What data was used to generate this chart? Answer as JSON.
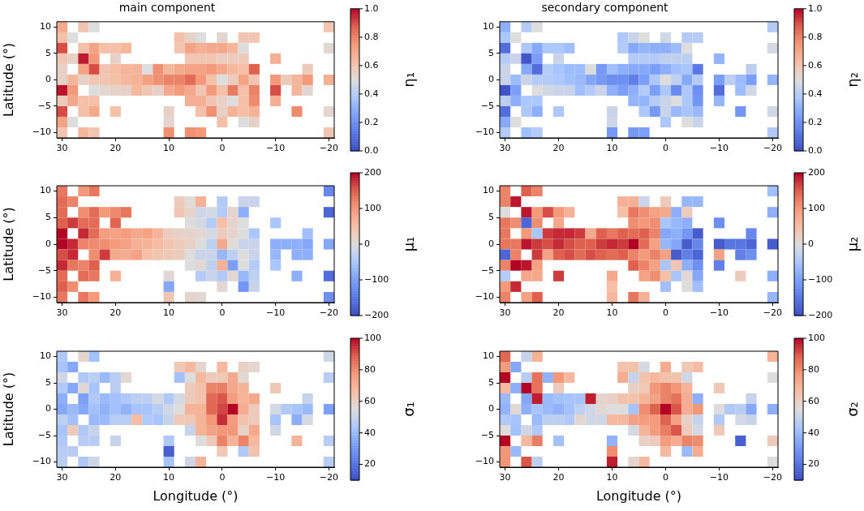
{
  "chart_data": [
    {
      "type": "heatmap",
      "title": "main component",
      "ylabel": "Latitude (°)",
      "clabel": "η₁",
      "clim": [
        0,
        1
      ],
      "cticks": [
        {
          "value": 0,
          "label": "0.0"
        },
        {
          "value": 0.2,
          "label": "0.2"
        },
        {
          "value": 0.4,
          "label": "0.4"
        },
        {
          "value": 0.6,
          "label": "0.6"
        },
        {
          "value": 0.8,
          "label": "0.8"
        },
        {
          "value": 1,
          "label": "1.0"
        }
      ],
      "xlim": [
        31,
        -21
      ],
      "xticks": [
        30,
        20,
        10,
        0,
        -10,
        -20
      ],
      "ylim": [
        -11,
        11
      ],
      "yticks": [
        -10,
        -5,
        0,
        5,
        10
      ],
      "cells": [
        [
          0.7,
          null,
          0.6,
          0.5,
          null,
          null,
          null,
          null,
          null,
          null,
          null,
          null,
          null,
          null,
          null,
          null,
          null,
          null,
          null,
          null,
          null,
          null,
          null,
          null,
          null,
          0.6
        ],
        [
          0.62,
          0.5,
          null,
          null,
          null,
          null,
          null,
          null,
          null,
          null,
          null,
          0.62,
          0.55,
          0.5,
          null,
          0.53,
          null,
          0.6,
          0.6,
          null,
          null,
          null,
          null,
          null,
          null,
          null
        ],
        [
          0.9,
          null,
          0.62,
          0.72,
          0.62,
          0.62,
          0.65,
          null,
          null,
          null,
          null,
          0.6,
          0.72,
          0.68,
          0.7,
          0.7,
          0.66,
          0.5,
          null,
          null,
          null,
          null,
          null,
          null,
          null,
          0.52
        ],
        [
          0.6,
          0.55,
          0.97,
          0.75,
          null,
          0.55,
          null,
          null,
          null,
          null,
          null,
          null,
          0.6,
          0.6,
          0.6,
          0.57,
          0.57,
          0.58,
          null,
          null,
          0.68,
          null,
          null,
          null,
          null,
          null
        ],
        [
          0.55,
          null,
          0.72,
          0.9,
          0.6,
          0.63,
          0.66,
          0.66,
          0.5,
          0.77,
          0.65,
          0.7,
          0.72,
          0.72,
          0.75,
          0.7,
          0.65,
          0.63,
          0.87,
          null,
          null,
          null,
          null,
          0.58,
          null,
          null
        ],
        [
          0.55,
          0.66,
          0.55,
          0.6,
          0.6,
          0.62,
          0.65,
          0.67,
          0.73,
          0.77,
          0.8,
          0.8,
          0.85,
          0.75,
          0.62,
          0.5,
          0.57,
          0.72,
          0.6,
          null,
          0.75,
          0.58,
          0.66,
          0.75,
          null,
          0.68
        ],
        [
          0.98,
          0.75,
          null,
          0.5,
          0.53,
          0.55,
          0.55,
          0.65,
          0.6,
          0.55,
          0.7,
          0.75,
          0.7,
          0.6,
          0.75,
          0.62,
          0.82,
          0.62,
          0.8,
          null,
          0.9,
          null,
          0.66,
          0.53,
          null,
          null
        ],
        [
          0.58,
          0.7,
          0.62,
          0.62,
          null,
          null,
          null,
          null,
          null,
          null,
          null,
          null,
          0.68,
          0.68,
          0.6,
          0.55,
          0.5,
          0.62,
          0.78,
          null,
          0.68,
          null,
          null,
          null,
          null,
          null
        ],
        [
          0.9,
          null,
          0.62,
          0.7,
          null,
          0.62,
          null,
          null,
          null,
          null,
          0.55,
          null,
          null,
          0.62,
          0.77,
          0.55,
          0.67,
          0.63,
          0.67,
          null,
          null,
          null,
          0.78,
          null,
          null,
          0.53
        ],
        [
          0.72,
          0.5,
          null,
          null,
          null,
          null,
          null,
          null,
          null,
          null,
          0.53,
          null,
          null,
          null,
          null,
          0.62,
          null,
          0.5,
          0.55,
          null,
          null,
          null,
          null,
          null,
          null,
          null
        ],
        [
          0.6,
          null,
          0.65,
          0.6,
          null,
          null,
          null,
          null,
          null,
          null,
          0.77,
          null,
          0.77,
          0.75,
          null,
          null,
          null,
          null,
          null,
          null,
          null,
          null,
          null,
          null,
          null,
          0.6
        ]
      ]
    },
    {
      "type": "heatmap",
      "title": "secondary component",
      "clabel": "η₂",
      "clim": [
        0,
        1
      ],
      "cticks": [
        {
          "value": 0,
          "label": "0.0"
        },
        {
          "value": 0.2,
          "label": "0.2"
        },
        {
          "value": 0.4,
          "label": "0.4"
        },
        {
          "value": 0.6,
          "label": "0.6"
        },
        {
          "value": 0.8,
          "label": "0.8"
        },
        {
          "value": 1,
          "label": "1.0"
        }
      ],
      "xlim": [
        31,
        -21
      ],
      "xticks": [
        30,
        20,
        10,
        0,
        -10,
        -20
      ],
      "ylim": [
        -11,
        11
      ],
      "yticks": [
        -10,
        -5,
        0,
        5,
        10
      ],
      "cells": [
        [
          0.3,
          null,
          0.4,
          0.5,
          null,
          null,
          null,
          null,
          null,
          null,
          null,
          null,
          null,
          null,
          null,
          null,
          null,
          null,
          null,
          null,
          null,
          null,
          null,
          null,
          null,
          0.4
        ],
        [
          0.38,
          0.5,
          null,
          null,
          null,
          null,
          null,
          null,
          null,
          null,
          null,
          0.38,
          0.45,
          0.5,
          null,
          0.47,
          null,
          0.4,
          0.4,
          null,
          null,
          null,
          null,
          null,
          null,
          null
        ],
        [
          0.1,
          null,
          0.38,
          0.28,
          0.38,
          0.38,
          0.35,
          null,
          null,
          null,
          null,
          0.4,
          0.28,
          0.32,
          0.3,
          0.3,
          0.34,
          0.5,
          null,
          null,
          null,
          null,
          null,
          null,
          null,
          0.48
        ],
        [
          0.4,
          0.45,
          0.03,
          0.25,
          null,
          0.45,
          null,
          null,
          null,
          null,
          null,
          null,
          0.4,
          0.4,
          0.4,
          0.43,
          0.43,
          0.42,
          null,
          null,
          0.32,
          null,
          null,
          null,
          null,
          null
        ],
        [
          0.45,
          null,
          0.28,
          0.1,
          0.4,
          0.37,
          0.34,
          0.34,
          0.5,
          0.23,
          0.35,
          0.3,
          0.28,
          0.28,
          0.25,
          0.3,
          0.35,
          0.37,
          0.13,
          null,
          null,
          null,
          null,
          0.42,
          null,
          null
        ],
        [
          0.45,
          0.34,
          0.45,
          0.4,
          0.4,
          0.38,
          0.35,
          0.33,
          0.27,
          0.23,
          0.2,
          0.2,
          0.15,
          0.25,
          0.38,
          0.5,
          0.43,
          0.28,
          0.4,
          null,
          0.25,
          0.42,
          0.34,
          0.25,
          null,
          0.32
        ],
        [
          0.02,
          0.25,
          null,
          0.5,
          0.47,
          0.45,
          0.45,
          0.35,
          0.4,
          0.45,
          0.3,
          0.25,
          0.3,
          0.4,
          0.25,
          0.38,
          0.18,
          0.38,
          0.2,
          null,
          0.1,
          null,
          0.34,
          0.47,
          null,
          null
        ],
        [
          0.42,
          0.3,
          0.38,
          0.38,
          null,
          null,
          null,
          null,
          null,
          null,
          null,
          null,
          0.32,
          0.32,
          0.4,
          0.45,
          0.5,
          0.38,
          0.22,
          null,
          0.32,
          null,
          null,
          null,
          null,
          null
        ],
        [
          0.1,
          null,
          0.38,
          0.3,
          null,
          0.38,
          null,
          null,
          null,
          null,
          0.45,
          null,
          null,
          0.38,
          0.23,
          0.45,
          0.33,
          0.37,
          0.33,
          null,
          null,
          null,
          0.22,
          null,
          null,
          0.47
        ],
        [
          0.28,
          0.5,
          null,
          null,
          null,
          null,
          null,
          null,
          null,
          null,
          0.47,
          null,
          null,
          null,
          null,
          0.38,
          null,
          0.5,
          0.45,
          null,
          null,
          null,
          null,
          null,
          null,
          null
        ],
        [
          0.4,
          null,
          0.35,
          0.4,
          null,
          null,
          null,
          null,
          null,
          null,
          0.23,
          null,
          0.23,
          0.25,
          null,
          null,
          null,
          null,
          null,
          null,
          null,
          null,
          null,
          null,
          null,
          0.4
        ]
      ]
    },
    {
      "type": "heatmap",
      "ylabel": "Latitude (°)",
      "clabel": "μ₁",
      "clim": [
        -200,
        200
      ],
      "cticks": [
        -200,
        -100,
        0,
        100,
        200
      ],
      "xlim": [
        31,
        -21
      ],
      "xticks": [
        30,
        20,
        10,
        0,
        -10,
        -20
      ],
      "ylim": [
        -11,
        11
      ],
      "yticks": [
        -10,
        -5,
        0,
        5,
        10
      ],
      "cells": [
        [
          130,
          null,
          100,
          130,
          null,
          null,
          null,
          null,
          null,
          null,
          null,
          null,
          null,
          null,
          null,
          null,
          null,
          null,
          null,
          null,
          null,
          null,
          null,
          null,
          null,
          -130
        ],
        [
          140,
          120,
          null,
          null,
          null,
          null,
          null,
          null,
          null,
          null,
          null,
          30,
          5,
          70,
          null,
          -40,
          null,
          -20,
          -20,
          null,
          null,
          null,
          null,
          null,
          null,
          null
        ],
        [
          140,
          null,
          110,
          140,
          100,
          115,
          130,
          null,
          null,
          null,
          null,
          40,
          15,
          -15,
          -10,
          -40,
          15,
          -80,
          null,
          null,
          null,
          null,
          null,
          null,
          null,
          -170
        ],
        [
          150,
          170,
          140,
          140,
          null,
          145,
          null,
          null,
          null,
          null,
          null,
          null,
          0,
          -10,
          -40,
          50,
          15,
          0,
          null,
          null,
          -50,
          null,
          null,
          null,
          null,
          null
        ],
        [
          200,
          null,
          180,
          140,
          95,
          90,
          95,
          80,
          90,
          65,
          30,
          20,
          15,
          10,
          -10,
          30,
          15,
          0,
          -50,
          null,
          null,
          null,
          null,
          -60,
          null,
          null
        ],
        [
          200,
          180,
          120,
          115,
          110,
          100,
          90,
          70,
          65,
          55,
          40,
          30,
          20,
          0,
          -30,
          80,
          5,
          -20,
          -20,
          null,
          -80,
          -80,
          -80,
          -90,
          null,
          -90
        ],
        [
          160,
          180,
          null,
          110,
          170,
          80,
          75,
          90,
          50,
          40,
          35,
          30,
          0,
          -20,
          -20,
          -70,
          -30,
          0,
          -20,
          null,
          -70,
          null,
          -80,
          -80,
          null,
          null
        ],
        [
          180,
          130,
          120,
          150,
          null,
          null,
          null,
          null,
          null,
          null,
          null,
          null,
          0,
          10,
          -30,
          70,
          -100,
          0,
          -40,
          null,
          -50,
          null,
          null,
          null,
          null,
          null
        ],
        [
          140,
          null,
          140,
          130,
          null,
          70,
          null,
          null,
          null,
          null,
          10,
          null,
          null,
          -40,
          -20,
          -45,
          10,
          -70,
          -30,
          null,
          null,
          null,
          -80,
          null,
          null,
          -160
        ],
        [
          150,
          110,
          null,
          null,
          null,
          null,
          null,
          null,
          null,
          null,
          -90,
          null,
          null,
          null,
          null,
          10,
          null,
          -110,
          -20,
          null,
          null,
          null,
          null,
          null,
          null,
          null
        ],
        [
          130,
          null,
          130,
          100,
          null,
          null,
          null,
          null,
          null,
          null,
          40,
          null,
          15,
          10,
          null,
          null,
          null,
          null,
          null,
          null,
          null,
          null,
          null,
          null,
          null,
          -120
        ]
      ]
    },
    {
      "type": "heatmap",
      "clabel": "μ₂",
      "clim": [
        -200,
        200
      ],
      "cticks": [
        -200,
        -100,
        0,
        100,
        200
      ],
      "xlim": [
        31,
        -21
      ],
      "xticks": [
        30,
        20,
        10,
        0,
        -10,
        -20
      ],
      "ylim": [
        -11,
        11
      ],
      "yticks": [
        -10,
        -5,
        0,
        5,
        10
      ],
      "cells": [
        [
          120,
          null,
          150,
          120,
          null,
          null,
          null,
          null,
          null,
          null,
          null,
          null,
          null,
          null,
          null,
          null,
          null,
          null,
          null,
          null,
          null,
          null,
          null,
          null,
          null,
          -60
        ],
        [
          120,
          190,
          null,
          null,
          null,
          null,
          null,
          null,
          null,
          null,
          null,
          70,
          70,
          -20,
          null,
          30,
          null,
          -70,
          -70,
          null,
          null,
          null,
          null,
          null,
          null,
          null
        ],
        [
          0,
          null,
          190,
          100,
          160,
          100,
          70,
          null,
          null,
          null,
          null,
          50,
          130,
          110,
          90,
          80,
          -80,
          30,
          null,
          null,
          null,
          null,
          null,
          null,
          null,
          -80
        ],
        [
          130,
          110,
          -170,
          110,
          null,
          80,
          null,
          null,
          null,
          null,
          null,
          null,
          110,
          100,
          110,
          -50,
          -70,
          -80,
          null,
          null,
          -120,
          null,
          null,
          null,
          null,
          null
        ],
        [
          130,
          null,
          100,
          -50,
          170,
          180,
          180,
          170,
          80,
          150,
          130,
          150,
          140,
          150,
          120,
          -90,
          -80,
          -110,
          -180,
          null,
          null,
          null,
          null,
          -130,
          null,
          null
        ],
        [
          130,
          130,
          190,
          170,
          160,
          180,
          160,
          150,
          150,
          170,
          180,
          170,
          200,
          140,
          90,
          -70,
          -90,
          -180,
          -130,
          null,
          -180,
          -150,
          -150,
          -170,
          null,
          -180
        ],
        [
          -170,
          120,
          null,
          170,
          90,
          150,
          160,
          140,
          160,
          150,
          140,
          150,
          120,
          100,
          120,
          90,
          -180,
          -140,
          -170,
          null,
          90,
          null,
          -140,
          -120,
          null,
          null
        ],
        [
          120,
          200,
          190,
          90,
          null,
          null,
          null,
          null,
          null,
          null,
          null,
          null,
          150,
          120,
          90,
          -50,
          40,
          -80,
          -120,
          null,
          -140,
          null,
          null,
          null,
          null,
          null
        ],
        [
          -40,
          null,
          80,
          80,
          null,
          170,
          null,
          null,
          null,
          null,
          80,
          null,
          null,
          90,
          110,
          50,
          -50,
          10,
          -90,
          null,
          null,
          null,
          30,
          null,
          null,
          -80
        ],
        [
          100,
          180,
          null,
          null,
          null,
          null,
          null,
          null,
          null,
          null,
          50,
          null,
          null,
          null,
          null,
          -60,
          null,
          0,
          -60,
          null,
          null,
          null,
          null,
          null,
          null,
          null
        ],
        [
          120,
          null,
          90,
          150,
          null,
          null,
          null,
          null,
          null,
          null,
          60,
          null,
          130,
          70,
          null,
          null,
          null,
          null,
          null,
          null,
          null,
          null,
          null,
          null,
          null,
          -70
        ]
      ]
    },
    {
      "type": "heatmap",
      "xlabel": "Longitude (°)",
      "ylabel": "Latitude (°)",
      "clabel": "σ₁",
      "clim": [
        10,
        100
      ],
      "cticks": [
        20,
        40,
        60,
        80,
        100
      ],
      "xlim": [
        31,
        -21
      ],
      "xticks": [
        30,
        20,
        10,
        0,
        -10,
        -20
      ],
      "ylim": [
        -11,
        11
      ],
      "yticks": [
        -10,
        -5,
        0,
        5,
        10
      ],
      "cells": [
        [
          45,
          null,
          58,
          42,
          null,
          null,
          null,
          null,
          null,
          null,
          null,
          null,
          null,
          null,
          null,
          null,
          null,
          null,
          null,
          null,
          null,
          null,
          null,
          null,
          null,
          52
        ],
        [
          43,
          35,
          null,
          null,
          null,
          null,
          null,
          null,
          null,
          null,
          null,
          63,
          68,
          58,
          null,
          68,
          null,
          60,
          58,
          null,
          null,
          null,
          null,
          null,
          null,
          null
        ],
        [
          52,
          null,
          45,
          48,
          40,
          47,
          57,
          null,
          null,
          null,
          null,
          42,
          55,
          68,
          62,
          63,
          73,
          57,
          null,
          null,
          null,
          null,
          null,
          null,
          null,
          47
        ],
        [
          45,
          35,
          57,
          43,
          null,
          47,
          null,
          null,
          null,
          null,
          null,
          null,
          62,
          65,
          82,
          83,
          73,
          70,
          null,
          null,
          63,
          null,
          null,
          null,
          null,
          null
        ],
        [
          37,
          null,
          33,
          45,
          40,
          42,
          45,
          48,
          48,
          53,
          45,
          53,
          62,
          65,
          87,
          90,
          77,
          70,
          73,
          null,
          null,
          null,
          null,
          50,
          null,
          null
        ],
        [
          35,
          40,
          35,
          42,
          38,
          42,
          38,
          43,
          43,
          47,
          52,
          55,
          70,
          70,
          87,
          92,
          100,
          72,
          62,
          null,
          53,
          45,
          43,
          40,
          null,
          33
        ],
        [
          48,
          42,
          null,
          40,
          40,
          47,
          47,
          67,
          45,
          43,
          50,
          63,
          63,
          70,
          78,
          95,
          77,
          65,
          62,
          null,
          43,
          null,
          37,
          53,
          null,
          null
        ],
        [
          43,
          62,
          45,
          50,
          null,
          null,
          null,
          null,
          null,
          null,
          null,
          null,
          50,
          70,
          75,
          78,
          78,
          60,
          73,
          null,
          52,
          null,
          null,
          null,
          null,
          null
        ],
        [
          45,
          null,
          47,
          47,
          null,
          50,
          null,
          null,
          null,
          null,
          45,
          null,
          null,
          55,
          63,
          82,
          70,
          82,
          68,
          null,
          null,
          null,
          70,
          null,
          null,
          47
        ],
        [
          47,
          47,
          null,
          null,
          null,
          null,
          null,
          null,
          null,
          null,
          15,
          null,
          null,
          null,
          null,
          63,
          null,
          45,
          65,
          null,
          null,
          null,
          null,
          null,
          null,
          null
        ],
        [
          48,
          null,
          45,
          52,
          null,
          null,
          null,
          null,
          null,
          null,
          43,
          null,
          52,
          70,
          null,
          null,
          null,
          null,
          null,
          null,
          null,
          null,
          null,
          null,
          null,
          47
        ]
      ]
    },
    {
      "type": "heatmap",
      "xlabel": "Longitude (°)",
      "clabel": "σ₂",
      "clim": [
        10,
        100
      ],
      "cticks": [
        20,
        40,
        60,
        80,
        100
      ],
      "xlim": [
        31,
        -21
      ],
      "xticks": [
        30,
        20,
        10,
        0,
        -10,
        -20
      ],
      "ylim": [
        -11,
        11
      ],
      "yticks": [
        -10,
        -5,
        0,
        5,
        10
      ],
      "cells": [
        [
          87,
          null,
          50,
          70,
          null,
          null,
          null,
          null,
          null,
          null,
          null,
          null,
          null,
          null,
          null,
          null,
          null,
          null,
          null,
          null,
          null,
          null,
          null,
          null,
          null,
          70
        ],
        [
          77,
          35,
          null,
          null,
          null,
          null,
          null,
          null,
          null,
          null,
          null,
          65,
          65,
          53,
          null,
          72,
          null,
          63,
          67,
          null,
          null,
          null,
          null,
          null,
          null,
          null
        ],
        [
          100,
          null,
          47,
          85,
          38,
          78,
          68,
          null,
          null,
          null,
          null,
          72,
          50,
          65,
          68,
          65,
          65,
          52,
          null,
          null,
          null,
          null,
          null,
          null,
          null,
          55
        ],
        [
          68,
          37,
          100,
          85,
          null,
          62,
          null,
          null,
          null,
          null,
          null,
          null,
          60,
          63,
          78,
          82,
          78,
          70,
          null,
          null,
          63,
          null,
          null,
          null,
          null,
          null
        ],
        [
          40,
          null,
          35,
          97,
          40,
          42,
          43,
          43,
          97,
          58,
          60,
          65,
          65,
          70,
          75,
          82,
          85,
          72,
          37,
          null,
          null,
          null,
          null,
          50,
          null,
          null
        ],
        [
          38,
          57,
          37,
          43,
          40,
          38,
          42,
          48,
          52,
          57,
          55,
          55,
          43,
          80,
          88,
          100,
          90,
          72,
          78,
          null,
          55,
          45,
          47,
          35,
          null,
          37
        ],
        [
          45,
          43,
          null,
          40,
          48,
          48,
          45,
          58,
          52,
          52,
          68,
          68,
          75,
          77,
          77,
          88,
          75,
          60,
          50,
          null,
          45,
          null,
          53,
          50,
          null,
          null
        ],
        [
          55,
          42,
          52,
          45,
          null,
          null,
          null,
          null,
          null,
          null,
          null,
          null,
          53,
          70,
          77,
          83,
          90,
          62,
          53,
          null,
          63,
          null,
          null,
          null,
          null,
          null
        ],
        [
          100,
          null,
          68,
          83,
          null,
          42,
          null,
          null,
          null,
          null,
          38,
          null,
          null,
          60,
          62,
          77,
          72,
          82,
          80,
          null,
          null,
          null,
          15,
          null,
          null,
          62
        ],
        [
          78,
          40,
          null,
          null,
          null,
          null,
          null,
          null,
          null,
          null,
          80,
          null,
          null,
          null,
          null,
          68,
          null,
          40,
          72,
          null,
          null,
          null,
          null,
          null,
          null,
          null
        ],
        [
          78,
          null,
          90,
          48,
          null,
          null,
          null,
          null,
          null,
          null,
          97,
          null,
          58,
          68,
          null,
          null,
          null,
          null,
          null,
          null,
          null,
          null,
          null,
          null,
          null,
          55
        ]
      ]
    }
  ]
}
